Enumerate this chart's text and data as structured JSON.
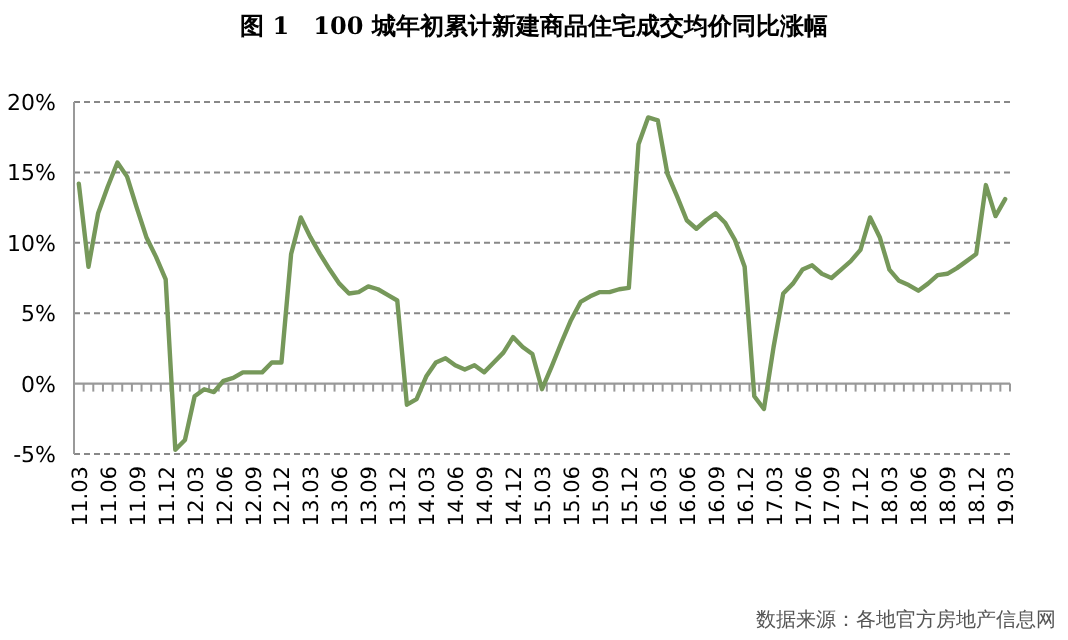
{
  "chart_data": {
    "type": "line",
    "title": "图 1　100 城年初累计新建商品住宅成交均价同比涨幅",
    "categories": [
      "11.03",
      null,
      null,
      "11.06",
      null,
      null,
      "11.09",
      null,
      null,
      "11.12",
      null,
      null,
      "12.03",
      null,
      null,
      "12.06",
      null,
      null,
      "12.09",
      null,
      null,
      "12.12",
      null,
      null,
      "13.03",
      null,
      null,
      "13.06",
      null,
      null,
      "13.09",
      null,
      null,
      "13.12",
      null,
      null,
      "14.03",
      null,
      null,
      "14.06",
      null,
      null,
      "14.09",
      null,
      null,
      "14.12",
      null,
      null,
      "15.03",
      null,
      null,
      "15.06",
      null,
      null,
      "15.09",
      null,
      null,
      "15.12",
      null,
      null,
      "16.03",
      null,
      null,
      "16.06",
      null,
      null,
      "16.09",
      null,
      null,
      "16.12",
      null,
      null,
      "17.03",
      null,
      null,
      "17.06",
      null,
      null,
      "17.09",
      null,
      null,
      "17.12",
      null,
      null,
      "18.03",
      null,
      null,
      "18.06",
      null,
      null,
      "18.09",
      null,
      null,
      "18.12",
      null,
      null,
      "19.03"
    ],
    "series": [
      {
        "color": "#76985a",
        "values": [
          14.2,
          8.3,
          12.1,
          14,
          15.7,
          14.7,
          12.5,
          10.4,
          9,
          7.4,
          -4.7,
          -4,
          -0.9,
          -0.4,
          -0.6,
          0.2,
          0.4,
          0.8,
          0.8,
          0.8,
          1.5,
          1.5,
          9.2,
          11.8,
          10.4,
          9.2,
          8.1,
          7.1,
          6.4,
          6.5,
          6.9,
          6.7,
          6.3,
          5.9,
          -1.5,
          -1.1,
          0.5,
          1.5,
          1.8,
          1.3,
          1,
          1.3,
          0.8,
          1.5,
          2.2,
          3.3,
          2.6,
          2.1,
          -0.4,
          1.2,
          2.9,
          4.5,
          5.8,
          6.2,
          6.5,
          6.5,
          6.7,
          6.8,
          17,
          18.9,
          18.7,
          14.9,
          13.3,
          11.6,
          11,
          11.6,
          12.1,
          11.4,
          10.2,
          8.3,
          -0.9,
          -1.8,
          2.6,
          6.4,
          7.1,
          8.1,
          8.4,
          7.8,
          7.5,
          8.1,
          8.7,
          9.5,
          11.8,
          10.4,
          8.1,
          7.3,
          7,
          6.6,
          7.1,
          7.7,
          7.8,
          8.2,
          8.7,
          9.2,
          14.1,
          11.9,
          13.1
        ]
      }
    ],
    "ylim": [
      -5,
      20
    ],
    "yticks": [
      {
        "value": -5,
        "label": "-5%"
      },
      {
        "value": 0,
        "label": "0%"
      },
      {
        "value": 5,
        "label": "5%"
      },
      {
        "value": 10,
        "label": "10%"
      },
      {
        "value": 15,
        "label": "15%"
      },
      {
        "value": 20,
        "label": "20%"
      }
    ],
    "grid": "y",
    "annotations": [
      "数据来源：各地官方房地产信息网"
    ]
  }
}
